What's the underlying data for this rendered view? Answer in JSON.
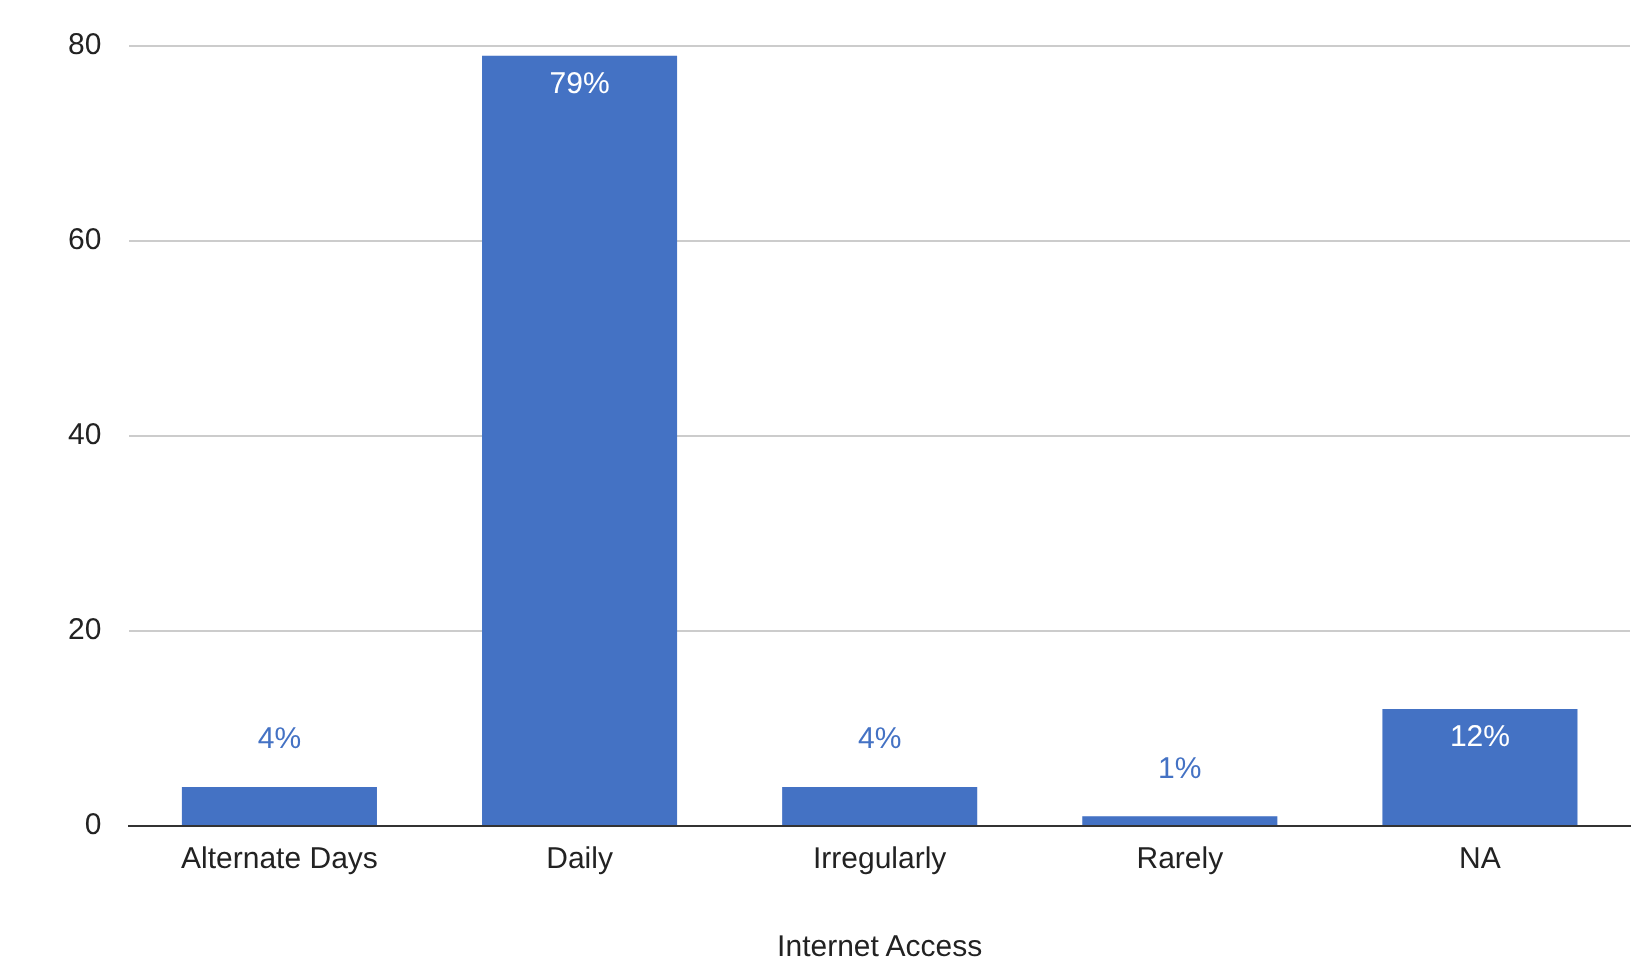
{
  "chart_data": {
    "type": "bar",
    "xlabel": "Internet Access",
    "categories": [
      "Alternate Days",
      "Daily",
      "Irregularly",
      "Rarely",
      "NA"
    ],
    "values": [
      4,
      79,
      4,
      1,
      12
    ],
    "value_labels": [
      "4%",
      "79%",
      "4%",
      "1%",
      "12%"
    ],
    "color": "#4472c4",
    "ylim": [
      0,
      80
    ],
    "yticks": [
      0,
      20,
      40,
      60,
      80
    ],
    "grid": "y",
    "legend": false
  }
}
